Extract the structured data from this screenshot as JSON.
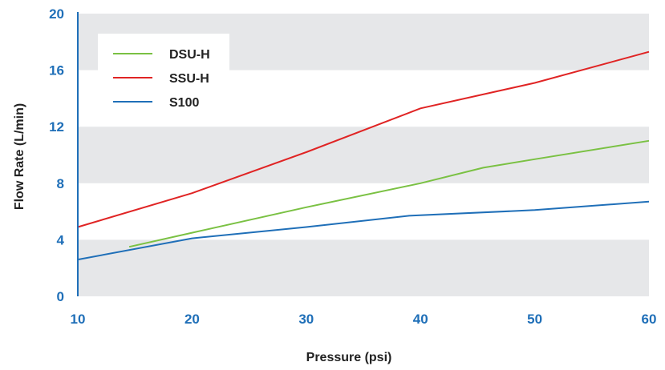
{
  "chart_data": {
    "type": "line",
    "title": "",
    "xlabel": "Pressure (psi)",
    "ylabel": "Flow Rate (L/min)",
    "xlim": [
      10,
      60
    ],
    "ylim": [
      0,
      20
    ],
    "xticks": [
      10,
      20,
      30,
      40,
      50,
      60
    ],
    "yticks": [
      0,
      4,
      8,
      12,
      16,
      20
    ],
    "grid": "alternating horizontal bands",
    "legend_position": "top-left",
    "series": [
      {
        "name": "DSU-H",
        "color": "#7ac143",
        "points": [
          [
            14.5,
            3.5
          ],
          [
            20,
            4.5
          ],
          [
            30,
            6.3
          ],
          [
            40,
            8.0
          ],
          [
            45.5,
            9.1
          ],
          [
            50,
            9.7
          ],
          [
            60,
            11.0
          ]
        ]
      },
      {
        "name": "SSU-H",
        "color": "#e02424",
        "points": [
          [
            10,
            4.9
          ],
          [
            20,
            7.3
          ],
          [
            30,
            10.2
          ],
          [
            40,
            13.3
          ],
          [
            50,
            15.1
          ],
          [
            60,
            17.3
          ]
        ]
      },
      {
        "name": "S100",
        "color": "#1f6fb8",
        "points": [
          [
            10,
            2.6
          ],
          [
            20,
            4.1
          ],
          [
            30,
            4.9
          ],
          [
            39,
            5.7
          ],
          [
            50,
            6.1
          ],
          [
            60,
            6.7
          ]
        ]
      }
    ]
  }
}
